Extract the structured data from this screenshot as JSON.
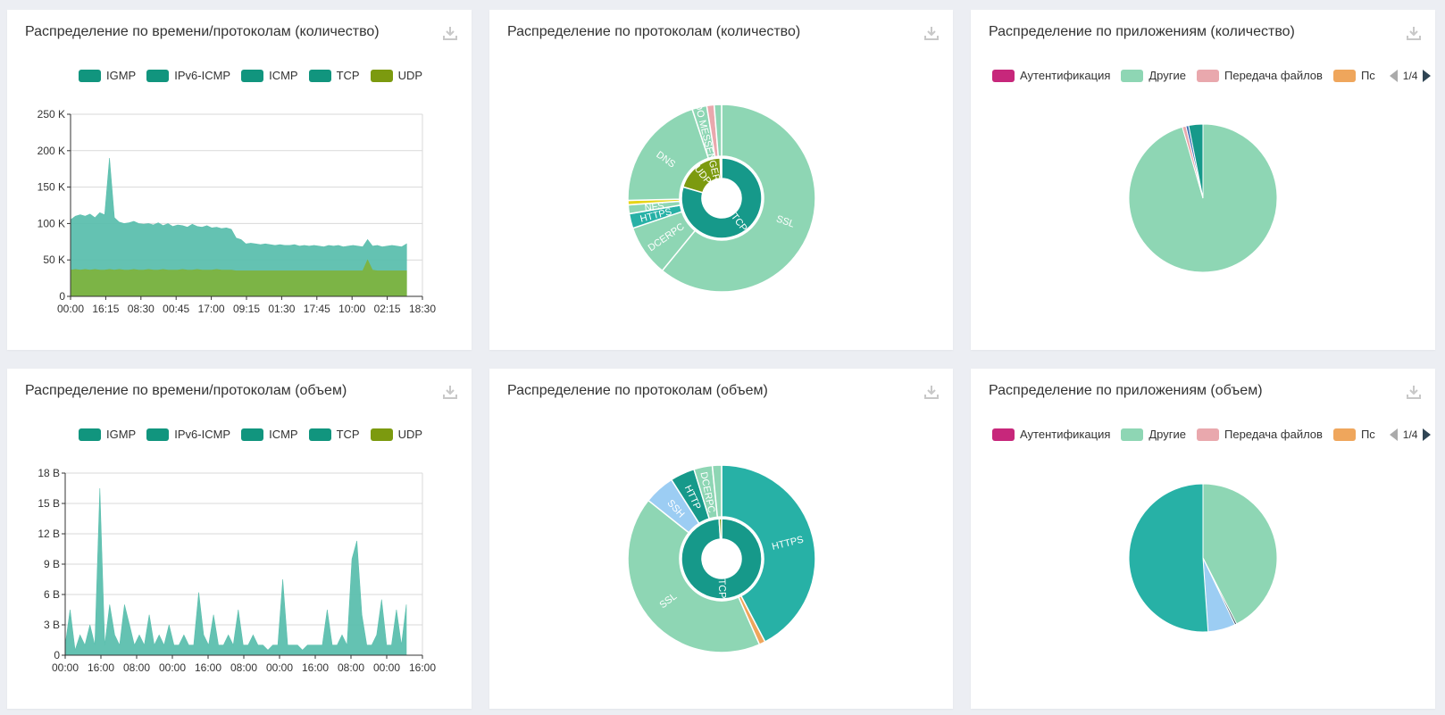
{
  "colors": {
    "igmp": "#11957e",
    "ipv6icmp": "#11957e",
    "icmp": "#11957e",
    "tcp": "#11957e",
    "udp": "#7c9a0f",
    "teal": "#16998a",
    "teal2": "#27b1a6",
    "mint": "#8ed6b4",
    "pink": "#e9a8ad",
    "orange": "#efa65c",
    "magenta": "#c7277b",
    "blue": "#9ccdf3",
    "yellow": "#e6d51a"
  },
  "download_icon": "download-icon",
  "proto_legend": [
    "IGMP",
    "IPv6-ICMP",
    "ICMP",
    "TCP",
    "UDP"
  ],
  "app_legend": [
    "Аутентификация",
    "Другие",
    "Передача файлов",
    "Пс"
  ],
  "app_pager": "1/4",
  "panels": {
    "p1": {
      "title": "Распределение по времени/протоколам (количество)"
    },
    "p2": {
      "title": "Распределение по протоколам (количество)"
    },
    "p3": {
      "title": "Распределение по приложениям (количество)"
    },
    "p4": {
      "title": "Распределение по времени/протоколам (объем)"
    },
    "p5": {
      "title": "Распределение по протоколам (объем)"
    },
    "p6": {
      "title": "Распределение по приложениям (объем)"
    }
  },
  "chart_data": [
    {
      "type": "area",
      "ylim": [
        0,
        250000
      ],
      "yticks": [
        "0",
        "50 K",
        "100 K",
        "150 K",
        "200 K",
        "250 K"
      ],
      "ytick_values": [
        0,
        50000,
        100000,
        150000,
        200000,
        250000
      ],
      "xticks": [
        "00:00",
        "16:15",
        "08:30",
        "00:45",
        "17:00",
        "09:15",
        "01:30",
        "17:45",
        "10:00",
        "02:15",
        "18:30"
      ],
      "series": [
        {
          "name": "TCP",
          "color": "#5cbfae",
          "values": [
            105000,
            110000,
            112000,
            110000,
            113000,
            108000,
            115000,
            112000,
            190000,
            108000,
            102000,
            100000,
            101000,
            103000,
            100000,
            99000,
            100000,
            98000,
            101000,
            97000,
            100000,
            96000,
            98000,
            97000,
            95000,
            99000,
            96000,
            95000,
            97000,
            94000,
            95000,
            93000,
            94000,
            92000,
            80000,
            78000,
            72000,
            73000,
            72000,
            71000,
            72000,
            71000,
            70000,
            71000,
            70000,
            70000,
            71000,
            69000,
            70000,
            69000,
            70000,
            69000,
            68000,
            70000,
            69000,
            70000,
            68000,
            69000,
            70000,
            69000,
            68000,
            78000,
            69000,
            70000,
            68000,
            69000,
            70000,
            69000,
            68000,
            72000
          ]
        },
        {
          "name": "UDP",
          "color": "#7db340",
          "values": [
            36000,
            37000,
            36000,
            37000,
            36000,
            37000,
            36000,
            36000,
            37000,
            36000,
            37000,
            36000,
            36000,
            37000,
            36000,
            36000,
            37000,
            36000,
            36000,
            37000,
            36000,
            36000,
            36000,
            37000,
            36000,
            36000,
            37000,
            36000,
            36000,
            36000,
            37000,
            36000,
            36000,
            36000,
            35000,
            35000,
            35000,
            35000,
            35000,
            35000,
            35000,
            35000,
            35000,
            35000,
            35000,
            35000,
            35000,
            35000,
            35000,
            35000,
            35000,
            35000,
            35000,
            35000,
            35000,
            35000,
            35000,
            35000,
            35000,
            35000,
            35000,
            50000,
            36000,
            35000,
            35000,
            35000,
            35000,
            35000,
            35000,
            35000
          ]
        }
      ]
    },
    {
      "type": "sunburst",
      "inner": [
        {
          "name": "TCP",
          "value": 80,
          "color": "#16998a"
        },
        {
          "name": "UDP",
          "value": 20,
          "color": "#7c9a0f"
        },
        {
          "name": "",
          "value": 0.6,
          "color": "#e6d51a"
        }
      ],
      "outer": [
        {
          "name": "SSL",
          "value": 48,
          "color": "#8ed6b4"
        },
        {
          "name": "DCERPC",
          "value": 7,
          "color": "#8ed6b4"
        },
        {
          "name": "HTTPS",
          "value": 2,
          "color": "#27b1a6"
        },
        {
          "name": "NFS",
          "value": 1.2,
          "color": "#8ed6b4"
        },
        {
          "name": "",
          "value": 0.6,
          "color": "#e6d51a"
        },
        {
          "name": "DNS",
          "value": 16,
          "color": "#8ed6b4"
        },
        {
          "name": "YAHOO MESSENGER",
          "value": 2,
          "color": "#8ed6b4"
        },
        {
          "name": "",
          "value": 1,
          "color": "#e9a8ad"
        },
        {
          "name": "",
          "value": 1,
          "color": "#8ed6b4"
        }
      ]
    },
    {
      "type": "pie",
      "legend": [
        "Аутентификация",
        "Другие",
        "Передача файлов",
        "Пс"
      ],
      "slices": [
        {
          "name": "Другие",
          "value": 95.5,
          "color": "#8ed6b4"
        },
        {
          "name": "Передача файлов",
          "value": 0.8,
          "color": "#e9a8ad"
        },
        {
          "name": "",
          "value": 0.6,
          "color": "#3a6fb5"
        },
        {
          "name": "",
          "value": 3.1,
          "color": "#16998a"
        }
      ]
    },
    {
      "type": "area",
      "ylim": [
        0,
        18
      ],
      "yticks": [
        "0",
        "3 B",
        "6 B",
        "9 B",
        "12 B",
        "15 B",
        "18 B"
      ],
      "ytick_values": [
        0,
        3,
        6,
        9,
        12,
        15,
        18
      ],
      "xticks": [
        "00:00",
        "16:00",
        "08:00",
        "00:00",
        "16:00",
        "08:00",
        "00:00",
        "16:00",
        "08:00",
        "00:00",
        "16:00"
      ],
      "series": [
        {
          "name": "TCP",
          "color": "#5cbfae",
          "values": [
            1,
            4.5,
            0.5,
            2,
            1,
            3,
            1,
            16.5,
            1,
            5,
            2,
            1,
            5,
            3,
            1,
            2,
            1,
            4,
            1,
            2,
            1,
            3,
            1,
            1,
            2,
            1,
            1,
            6.2,
            2,
            1,
            4,
            1,
            1,
            2,
            1,
            4.5,
            1,
            1,
            2,
            1,
            1,
            0.5,
            1,
            1,
            7.5,
            1,
            1,
            1,
            0.5,
            1,
            1,
            1,
            1,
            4.5,
            1,
            1,
            2,
            1,
            9.5,
            11.3,
            4,
            1,
            1,
            2,
            5.5,
            1,
            1,
            4.5,
            1,
            5
          ]
        }
      ]
    },
    {
      "type": "sunburst",
      "inner": [
        {
          "name": "TCP",
          "value": 99,
          "color": "#16998a"
        },
        {
          "name": "UDP",
          "value": 1,
          "color": "#7c9a0f"
        }
      ],
      "outer": [
        {
          "name": "HTTPS",
          "value": 40,
          "color": "#27b1a6"
        },
        {
          "name": "",
          "value": 1,
          "color": "#efa65c"
        },
        {
          "name": "SSL",
          "value": 40,
          "color": "#8ed6b4"
        },
        {
          "name": "SSH",
          "value": 5,
          "color": "#9ccdf3"
        },
        {
          "name": "HTTP",
          "value": 4,
          "color": "#16998a"
        },
        {
          "name": "DCERPC",
          "value": 3,
          "color": "#8ed6b4"
        },
        {
          "name": "",
          "value": 1.5,
          "color": "#8ed6b4"
        }
      ]
    },
    {
      "type": "pie",
      "legend": [
        "Аутентификация",
        "Другие",
        "Передача файлов",
        "Пс"
      ],
      "slices": [
        {
          "name": "Другие",
          "value": 42.5,
          "color": "#8ed6b4"
        },
        {
          "name": "",
          "value": 0.4,
          "color": "#2f4554"
        },
        {
          "name": "",
          "value": 6,
          "color": "#9ccdf3"
        },
        {
          "name": "",
          "value": 51.1,
          "color": "#27b1a6"
        }
      ]
    }
  ]
}
